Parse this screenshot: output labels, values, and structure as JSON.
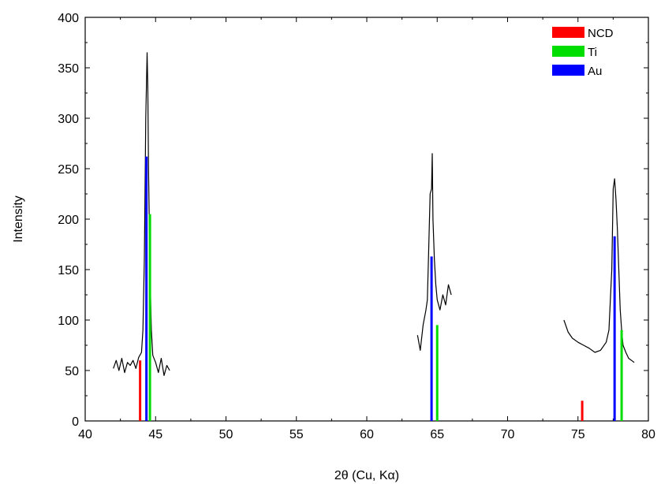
{
  "chart_data": {
    "type": "line",
    "xlabel": "2θ (Cu, Kα)",
    "ylabel": "Intensity",
    "xlim": [
      40,
      80
    ],
    "ylim": [
      0,
      400
    ],
    "x_ticks": [
      40,
      45,
      50,
      55,
      60,
      65,
      70,
      75,
      80
    ],
    "y_ticks": [
      0,
      50,
      100,
      150,
      200,
      250,
      300,
      350,
      400
    ],
    "grid": false,
    "legend_position": "top-right",
    "colors": {
      "NCD": "#ff0000",
      "Ti": "#00dd00",
      "Au": "#0000ff",
      "pattern": "#000000"
    },
    "legend": [
      {
        "name": "NCD",
        "color": "#ff0000"
      },
      {
        "name": "Ti",
        "color": "#00dd00"
      },
      {
        "name": "Au",
        "color": "#0000ff"
      }
    ],
    "reference_lines": [
      {
        "phase": "NCD",
        "x": 43.9,
        "y": 60
      },
      {
        "phase": "NCD",
        "x": 75.3,
        "y": 20
      },
      {
        "phase": "Ti",
        "x": 44.6,
        "y": 205
      },
      {
        "phase": "Ti",
        "x": 65.0,
        "y": 95
      },
      {
        "phase": "Ti",
        "x": 78.1,
        "y": 90
      },
      {
        "phase": "Au",
        "x": 44.35,
        "y": 262
      },
      {
        "phase": "Au",
        "x": 64.6,
        "y": 163
      },
      {
        "phase": "Au",
        "x": 77.6,
        "y": 183
      }
    ],
    "pattern_segments": [
      {
        "x": [
          42.0,
          42.2,
          42.4,
          42.6,
          42.8,
          43.0,
          43.2,
          43.4,
          43.6,
          43.8,
          44.0,
          44.1,
          44.2,
          44.3,
          44.4,
          44.45,
          44.5,
          44.6,
          44.7,
          44.8,
          45.0,
          45.2,
          45.4,
          45.6,
          45.8,
          46.0
        ],
        "y": [
          52,
          60,
          50,
          62,
          48,
          58,
          55,
          60,
          52,
          63,
          68,
          90,
          160,
          300,
          365,
          330,
          250,
          150,
          90,
          65,
          58,
          48,
          62,
          45,
          55,
          50
        ]
      },
      {
        "x": [
          63.6,
          63.8,
          64.0,
          64.2,
          64.3,
          64.4,
          64.5,
          64.6,
          64.65,
          64.7,
          64.8,
          64.9,
          65.0,
          65.2,
          65.4,
          65.6,
          65.8,
          66.0
        ],
        "y": [
          85,
          70,
          95,
          110,
          120,
          170,
          225,
          230,
          265,
          200,
          160,
          135,
          120,
          110,
          125,
          115,
          135,
          125
        ]
      },
      {
        "x": [
          74.0,
          74.3,
          74.6,
          75.0,
          75.4,
          75.8,
          76.2,
          76.6,
          77.0,
          77.2,
          77.4,
          77.5,
          77.6,
          77.7,
          77.8,
          77.9,
          78.0,
          78.1,
          78.2,
          78.4,
          78.6,
          78.8,
          79.0
        ],
        "y": [
          100,
          88,
          82,
          78,
          75,
          72,
          68,
          70,
          78,
          90,
          150,
          230,
          240,
          220,
          190,
          150,
          110,
          90,
          75,
          68,
          62,
          60,
          58
        ]
      }
    ]
  }
}
